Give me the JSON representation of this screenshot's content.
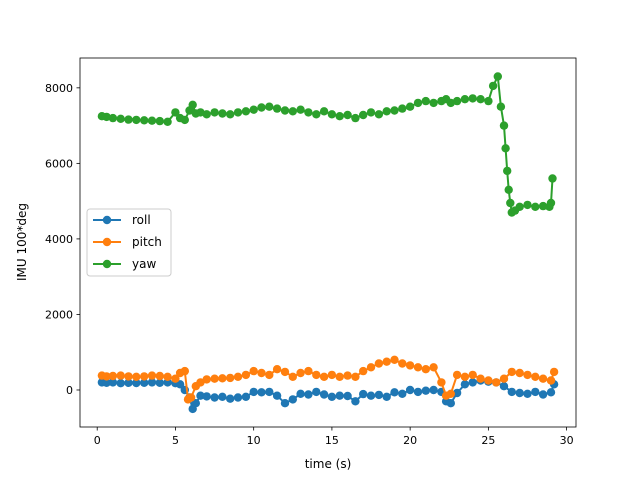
{
  "chart_data": {
    "type": "line",
    "title": "",
    "xlabel": "time (s)",
    "ylabel": "IMU 100*deg",
    "xlim": [
      -1.1,
      30.6
    ],
    "ylim": [
      -980,
      8790
    ],
    "xticks": [
      0,
      5,
      10,
      15,
      20,
      25,
      30
    ],
    "yticks": [
      0,
      2000,
      4000,
      6000,
      8000
    ],
    "grid": false,
    "legend": {
      "placement": "center-left"
    },
    "series": [
      {
        "name": "roll",
        "color": "#1f77b4",
        "x": [
          0.3,
          0.6,
          1.0,
          1.5,
          2.0,
          2.5,
          3.0,
          3.5,
          4.0,
          4.5,
          5.0,
          5.3,
          5.6,
          5.9,
          6.1,
          6.3,
          6.6,
          7.0,
          7.5,
          8.0,
          8.5,
          9.0,
          9.5,
          10.0,
          10.5,
          11.0,
          11.5,
          12.0,
          12.5,
          13.0,
          13.5,
          14.0,
          14.5,
          15.0,
          15.5,
          16.0,
          16.5,
          17.0,
          17.5,
          18.0,
          18.5,
          19.0,
          19.5,
          20.0,
          20.5,
          21.0,
          21.5,
          22.0,
          22.3,
          22.6,
          23.0,
          23.5,
          24.0,
          24.5,
          25.0,
          25.5,
          26.0,
          26.5,
          27.0,
          27.5,
          28.0,
          28.5,
          29.0,
          29.2
        ],
        "y": [
          200,
          190,
          200,
          180,
          190,
          185,
          190,
          200,
          190,
          200,
          180,
          150,
          0,
          -200,
          -500,
          -350,
          -150,
          -170,
          -200,
          -180,
          -230,
          -200,
          -180,
          -50,
          -60,
          -50,
          -150,
          -350,
          -250,
          -100,
          -120,
          -50,
          -120,
          -180,
          -150,
          -160,
          -300,
          -110,
          -150,
          -130,
          -180,
          -60,
          -100,
          0,
          -50,
          -20,
          0,
          -50,
          -300,
          -350,
          -80,
          150,
          200,
          250,
          220,
          200,
          100,
          -50,
          -80,
          -100,
          -50,
          -120,
          -60,
          150
        ]
      },
      {
        "name": "pitch",
        "color": "#ff7f0e",
        "x": [
          0.3,
          0.6,
          1.0,
          1.5,
          2.0,
          2.5,
          3.0,
          3.5,
          4.0,
          4.5,
          5.0,
          5.3,
          5.6,
          5.8,
          6.0,
          6.3,
          6.6,
          7.0,
          7.5,
          8.0,
          8.5,
          9.0,
          9.5,
          10.0,
          10.5,
          11.0,
          11.5,
          12.0,
          12.5,
          13.0,
          13.5,
          14.0,
          14.5,
          15.0,
          15.5,
          16.0,
          16.5,
          17.0,
          17.5,
          18.0,
          18.5,
          19.0,
          19.5,
          20.0,
          20.5,
          21.0,
          21.5,
          22.0,
          22.3,
          22.6,
          23.0,
          23.5,
          24.0,
          24.5,
          25.0,
          25.5,
          26.0,
          26.5,
          27.0,
          27.5,
          28.0,
          28.5,
          29.0,
          29.2
        ],
        "y": [
          380,
          360,
          370,
          380,
          360,
          350,
          360,
          380,
          370,
          350,
          300,
          450,
          500,
          -250,
          -200,
          100,
          200,
          280,
          300,
          310,
          320,
          350,
          400,
          500,
          450,
          400,
          550,
          480,
          350,
          450,
          500,
          400,
          350,
          400,
          350,
          380,
          350,
          500,
          600,
          700,
          750,
          800,
          700,
          650,
          600,
          550,
          600,
          200,
          -150,
          -100,
          400,
          350,
          400,
          300,
          250,
          200,
          300,
          480,
          450,
          400,
          350,
          300,
          250,
          480
        ]
      },
      {
        "name": "yaw",
        "color": "#2ca02c",
        "x": [
          0.3,
          0.6,
          1.0,
          1.5,
          2.0,
          2.5,
          3.0,
          3.5,
          4.0,
          4.5,
          5.0,
          5.3,
          5.6,
          5.9,
          6.1,
          6.3,
          6.6,
          7.0,
          7.5,
          8.0,
          8.5,
          9.0,
          9.5,
          10.0,
          10.5,
          11.0,
          11.5,
          12.0,
          12.5,
          13.0,
          13.5,
          14.0,
          14.5,
          15.0,
          15.5,
          16.0,
          16.5,
          17.0,
          17.5,
          18.0,
          18.5,
          19.0,
          19.5,
          20.0,
          20.5,
          21.0,
          21.5,
          22.0,
          22.3,
          22.6,
          23.0,
          23.5,
          24.0,
          24.5,
          25.0,
          25.3,
          25.6,
          25.8,
          26.0,
          26.1,
          26.2,
          26.3,
          26.4,
          26.5,
          26.7,
          27.0,
          27.5,
          28.0,
          28.5,
          28.9,
          29.0,
          29.1
        ],
        "y": [
          7250,
          7230,
          7200,
          7180,
          7160,
          7150,
          7140,
          7130,
          7120,
          7100,
          7350,
          7200,
          7150,
          7400,
          7550,
          7320,
          7350,
          7300,
          7350,
          7320,
          7300,
          7350,
          7380,
          7420,
          7480,
          7500,
          7450,
          7400,
          7380,
          7420,
          7350,
          7300,
          7380,
          7300,
          7250,
          7280,
          7200,
          7280,
          7350,
          7300,
          7380,
          7400,
          7450,
          7500,
          7600,
          7650,
          7600,
          7650,
          7700,
          7600,
          7650,
          7700,
          7720,
          7700,
          7650,
          8050,
          8300,
          7500,
          7000,
          6400,
          5800,
          5300,
          4950,
          4700,
          4750,
          4850,
          4900,
          4850,
          4870,
          4850,
          4950,
          5600
        ]
      }
    ]
  }
}
